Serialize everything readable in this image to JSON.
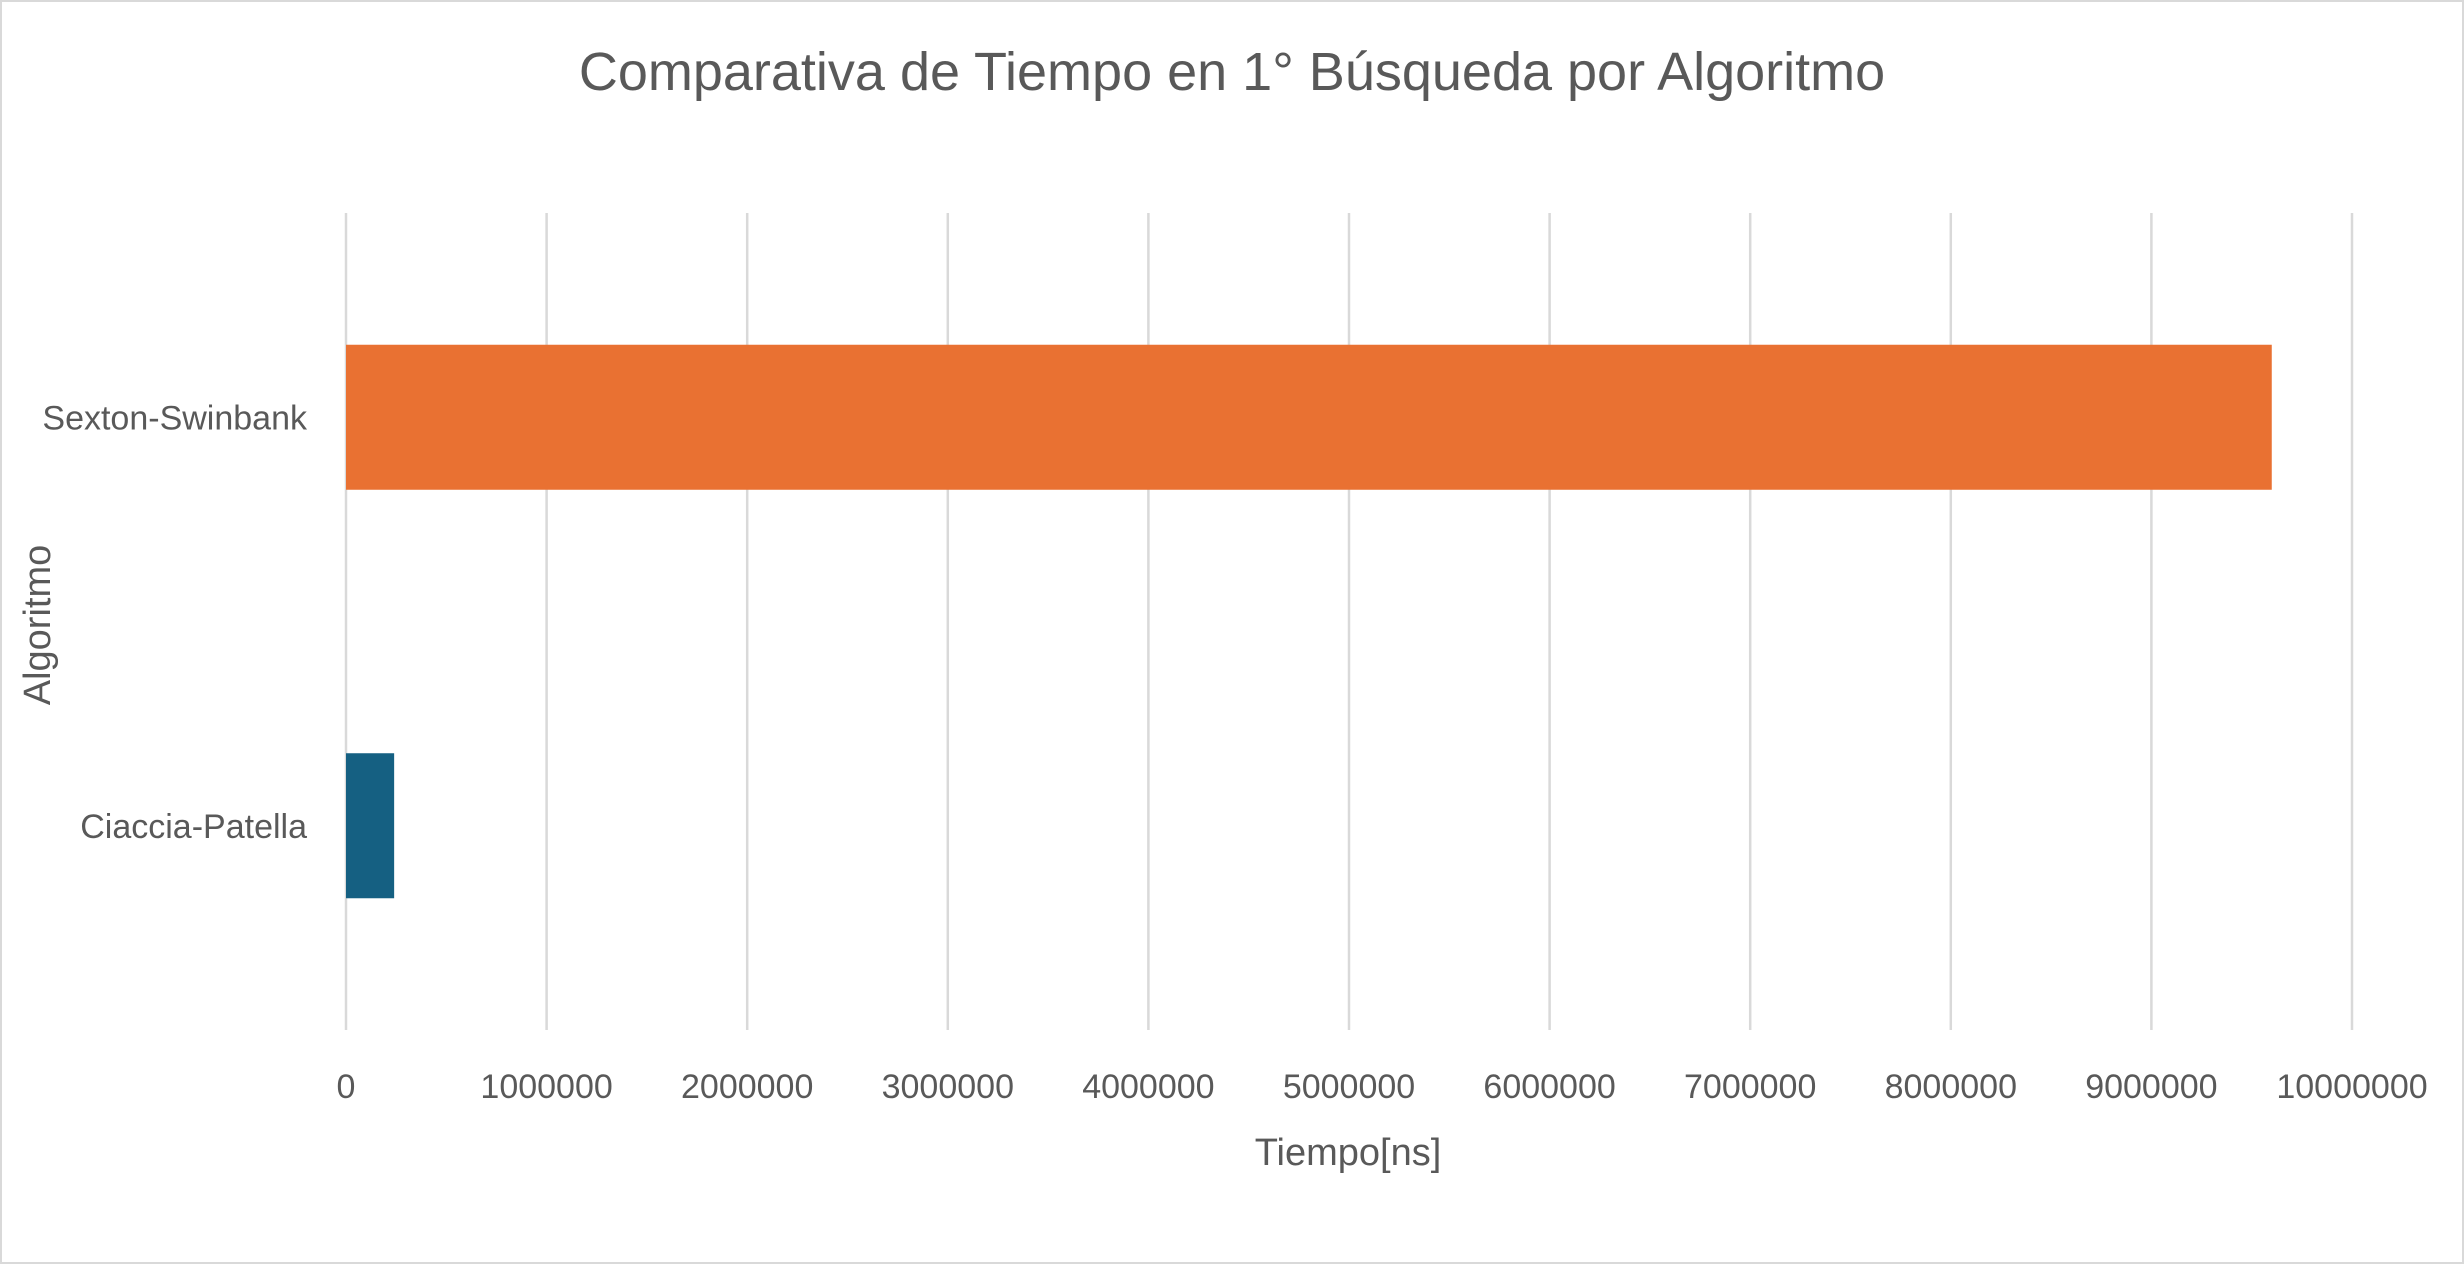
{
  "chart_data": {
    "type": "bar",
    "orientation": "horizontal",
    "title": "Comparativa  de Tiempo en 1° Búsqueda por Algoritmo",
    "xlabel": "Tiempo[ns]",
    "ylabel": "Algoritmo",
    "xlim": [
      0,
      10000000
    ],
    "x_ticks": [
      "0",
      "1000000",
      "2000000",
      "3000000",
      "4000000",
      "5000000",
      "6000000",
      "7000000",
      "8000000",
      "9000000",
      "10000000"
    ],
    "categories": [
      "Sexton-Swinbank",
      "Ciaccia-Patella"
    ],
    "values": [
      9600000,
      240000
    ],
    "colors": [
      "#E97132",
      "#156082"
    ],
    "grid": "vertical major gridlines",
    "legend": "none"
  }
}
